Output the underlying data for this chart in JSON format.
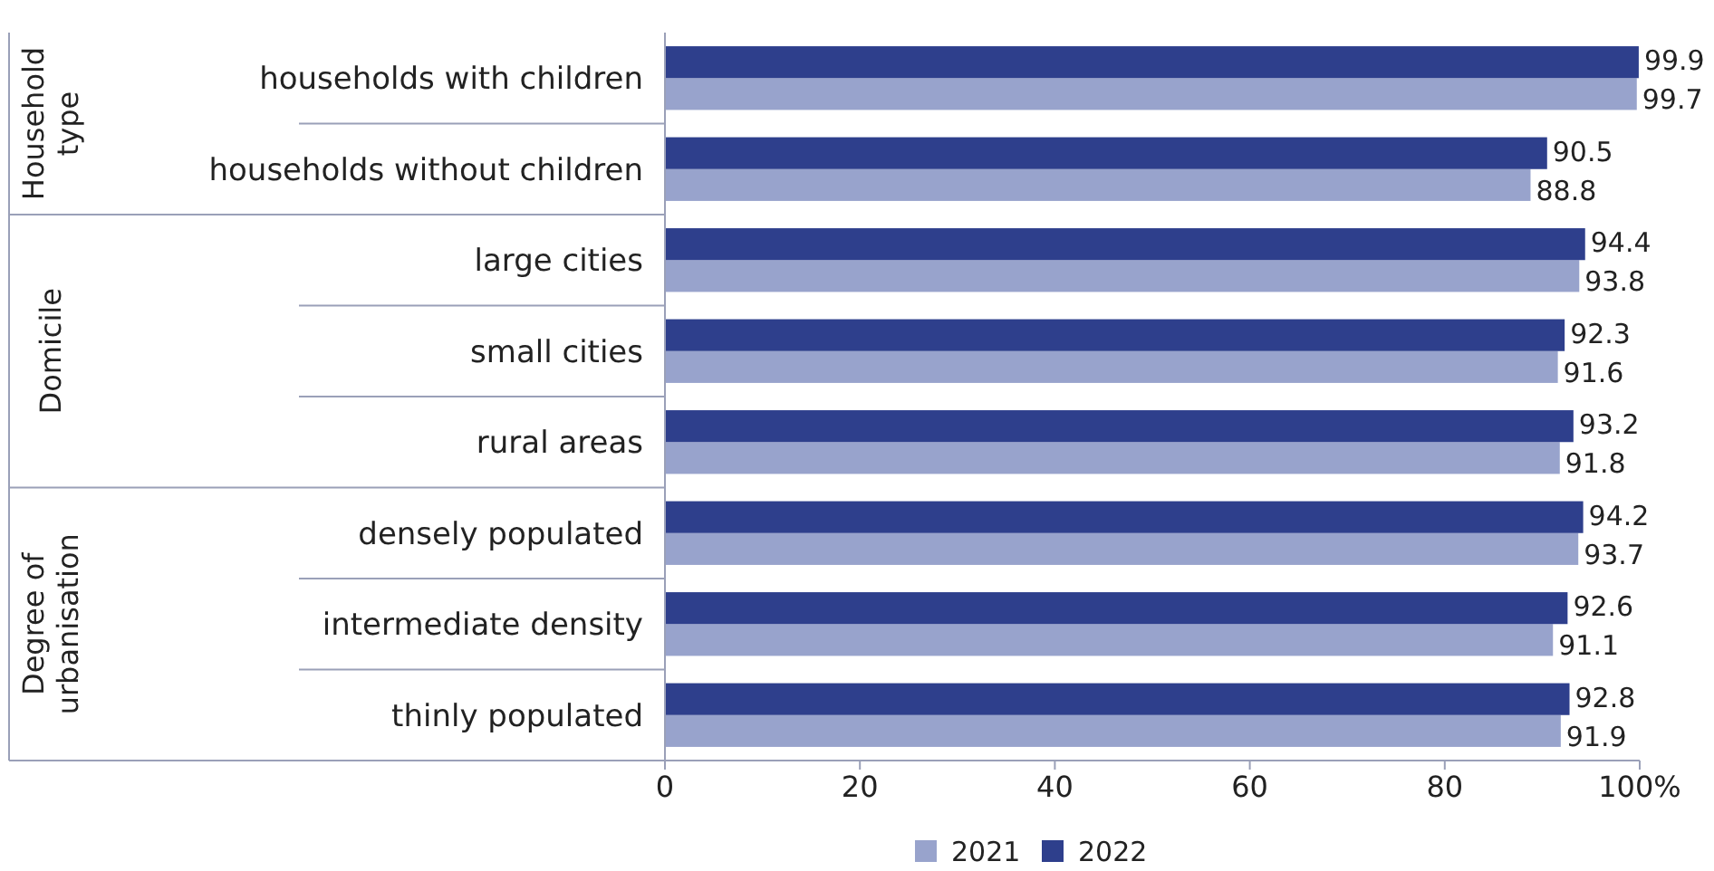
{
  "chart_data": {
    "type": "bar",
    "orientation": "horizontal",
    "categories": [
      "households with children",
      "households without children",
      "large cities",
      "small cities",
      "rural areas",
      "densely populated",
      "intermediate density",
      "thinly populated"
    ],
    "series": [
      {
        "name": "2021",
        "color": "#98a3cc",
        "values": [
          99.7,
          88.8,
          93.8,
          91.6,
          91.8,
          93.7,
          91.1,
          91.9
        ]
      },
      {
        "name": "2022",
        "color": "#2e3f8c",
        "values": [
          99.9,
          90.5,
          94.4,
          92.3,
          93.2,
          94.2,
          92.6,
          92.8
        ]
      }
    ],
    "xlim": [
      0,
      100
    ],
    "xticks": [
      0,
      20,
      40,
      60,
      80,
      {
        "value": 100,
        "label": "100%"
      }
    ],
    "data_labels": true,
    "grid": false,
    "legend": "bottom",
    "annotations": [
      "Household type",
      "Domicile",
      "Degree of urbanisation"
    ]
  }
}
